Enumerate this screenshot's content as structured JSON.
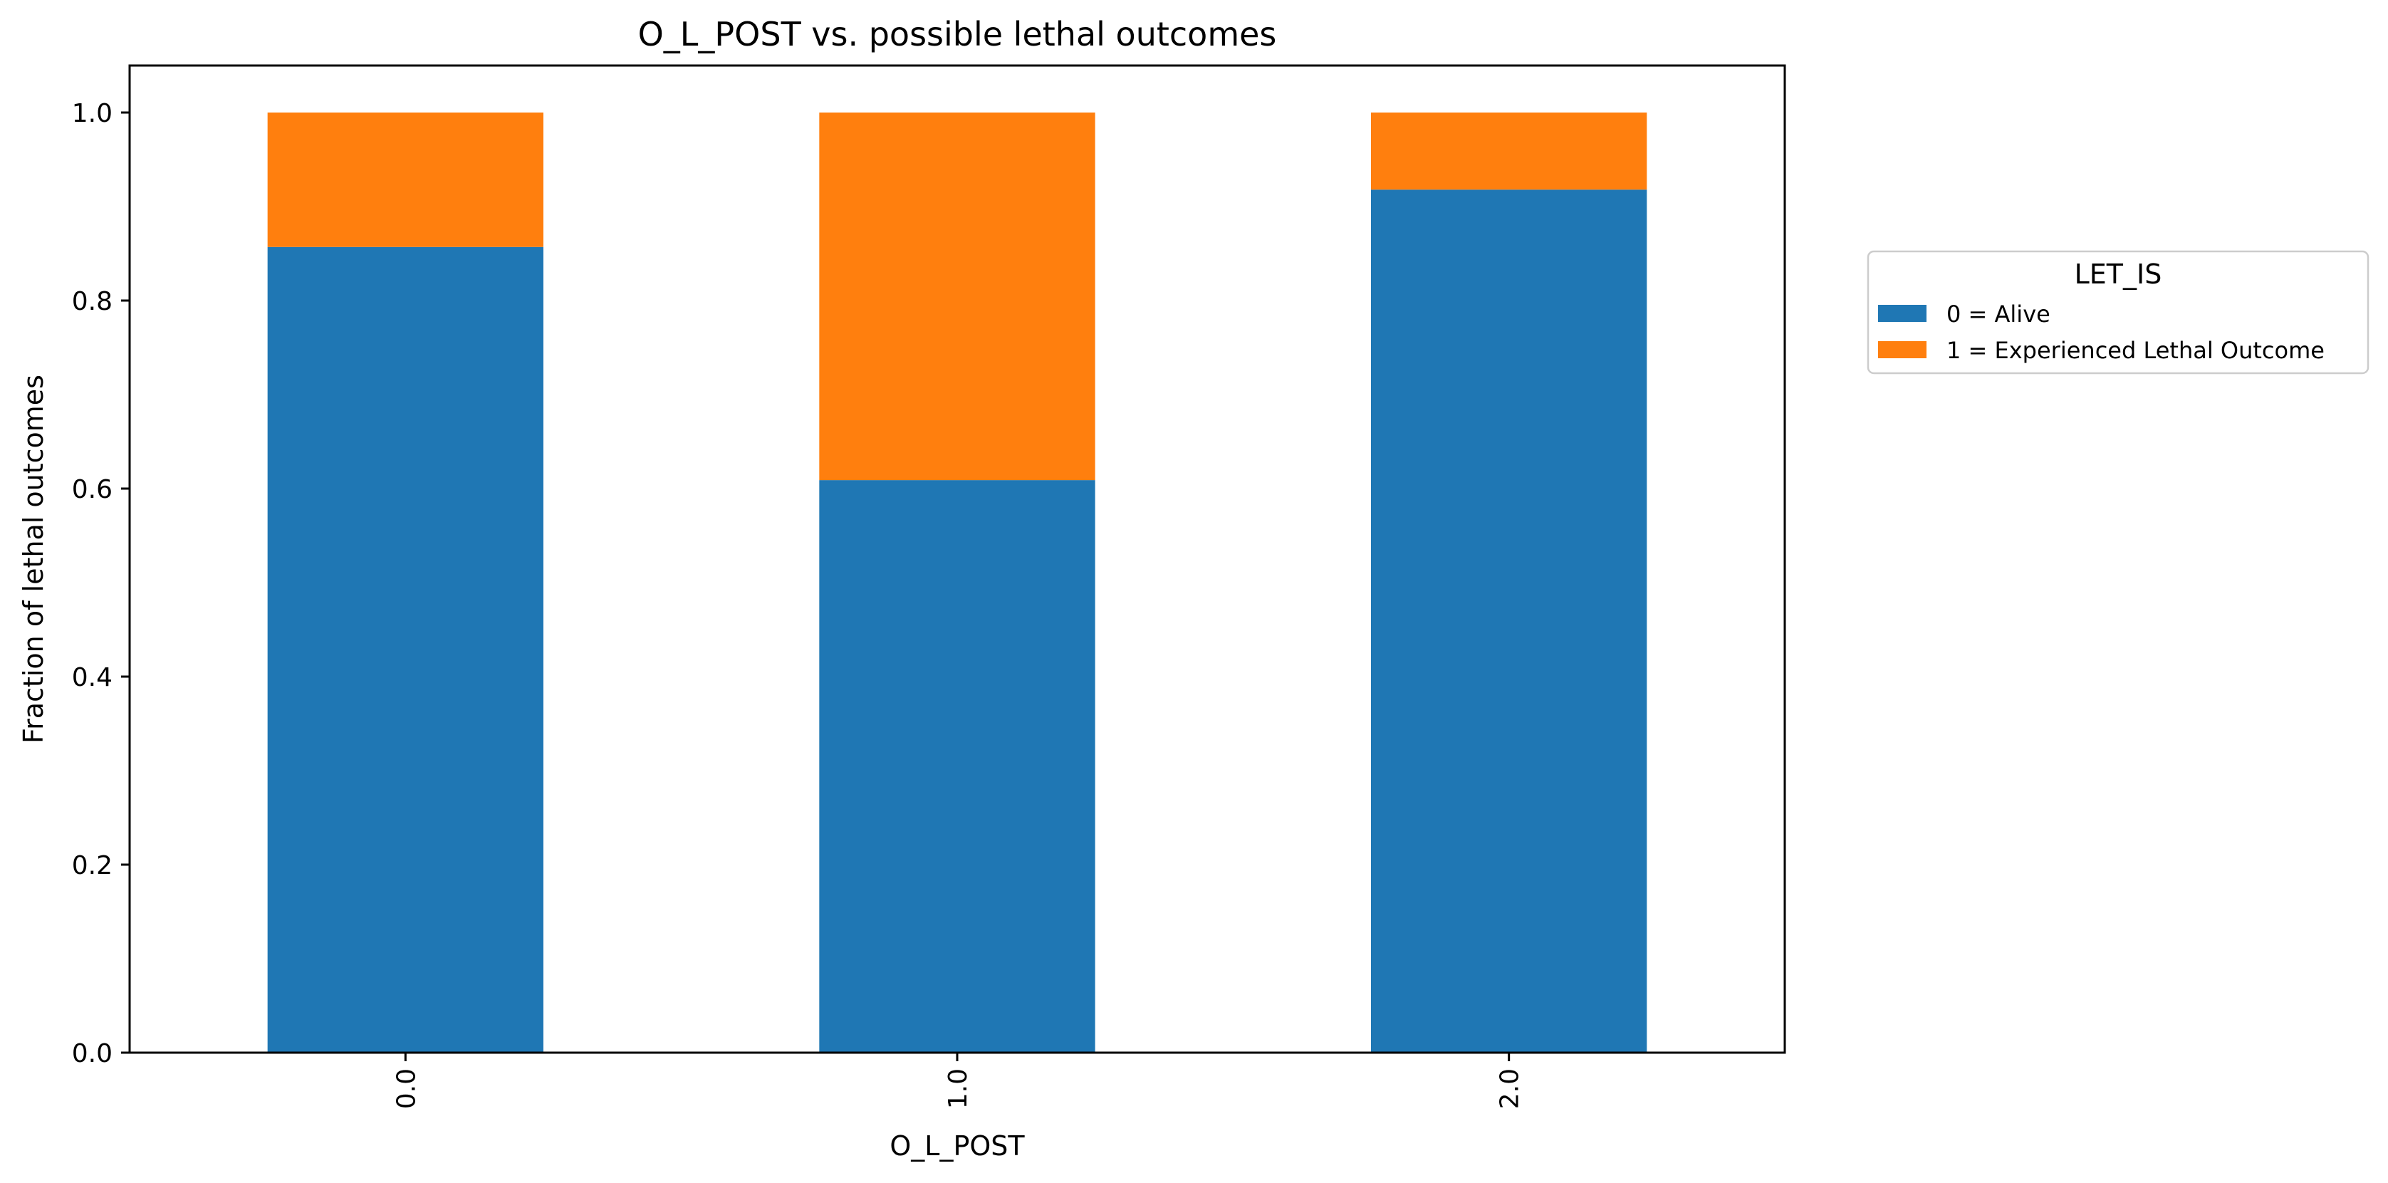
{
  "chart_data": {
    "type": "bar",
    "stacked": true,
    "title": "O_L_POST vs. possible lethal outcomes",
    "xlabel": "O_L_POST",
    "ylabel": "Fraction of lethal outcomes",
    "categories": [
      "0.0",
      "1.0",
      "2.0"
    ],
    "ylim": [
      0,
      1.05
    ],
    "yticks": [
      "0.0",
      "0.2",
      "0.4",
      "0.6",
      "0.8",
      "1.0"
    ],
    "x_tick_rotation": "vertical",
    "grid": false,
    "legend": {
      "title": "LET_IS",
      "placement": "outside-right-upper"
    },
    "series": [
      {
        "name": "0 = Alive",
        "color": "#1f77b4",
        "values": [
          0.857,
          0.609,
          0.918
        ]
      },
      {
        "name": "1 = Experienced Lethal Outcome",
        "color": "#ff7f0e",
        "values": [
          0.143,
          0.391,
          0.082
        ]
      }
    ]
  }
}
